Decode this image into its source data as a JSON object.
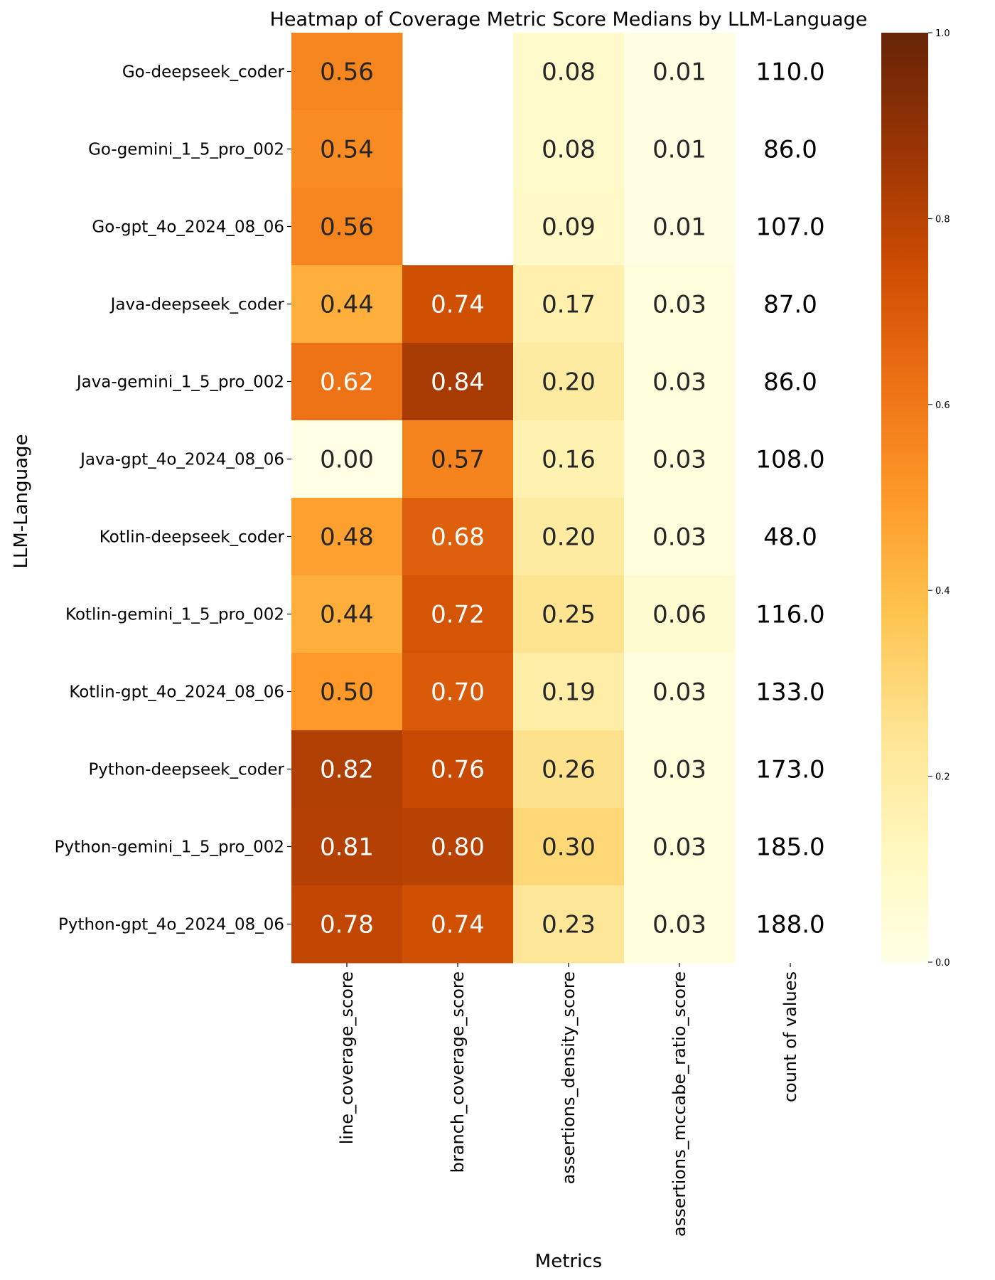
{
  "chart_data": {
    "type": "heatmap",
    "title": "Heatmap of Coverage Metric Score Medians by LLM-Language",
    "xlabel": "Metrics",
    "ylabel": "LLM-Language",
    "rows": [
      "Go-deepseek_coder",
      "Go-gemini_1_5_pro_002",
      "Go-gpt_4o_2024_08_06",
      "Java-deepseek_coder",
      "Java-gemini_1_5_pro_002",
      "Java-gpt_4o_2024_08_06",
      "Kotlin-deepseek_coder",
      "Kotlin-gemini_1_5_pro_002",
      "Kotlin-gpt_4o_2024_08_06",
      "Python-deepseek_coder",
      "Python-gemini_1_5_pro_002",
      "Python-gpt_4o_2024_08_06"
    ],
    "columns": [
      "line_coverage_score",
      "branch_coverage_score",
      "assertions_density_score",
      "assertions_mccabe_ratio_score",
      "count of values"
    ],
    "values": [
      [
        0.56,
        null,
        0.08,
        0.01,
        110.0
      ],
      [
        0.54,
        null,
        0.08,
        0.01,
        86.0
      ],
      [
        0.56,
        null,
        0.09,
        0.01,
        107.0
      ],
      [
        0.44,
        0.74,
        0.17,
        0.03,
        87.0
      ],
      [
        0.62,
        0.84,
        0.2,
        0.03,
        86.0
      ],
      [
        0.0,
        0.57,
        0.16,
        0.03,
        108.0
      ],
      [
        0.48,
        0.68,
        0.2,
        0.03,
        48.0
      ],
      [
        0.44,
        0.72,
        0.25,
        0.06,
        116.0
      ],
      [
        0.5,
        0.7,
        0.19,
        0.03,
        133.0
      ],
      [
        0.82,
        0.76,
        0.26,
        0.03,
        173.0
      ],
      [
        0.81,
        0.8,
        0.3,
        0.03,
        185.0
      ],
      [
        0.78,
        0.74,
        0.23,
        0.03,
        188.0
      ]
    ],
    "colorbar": {
      "colormap": "YlOrBr",
      "range": [
        0.0,
        1.0
      ],
      "ticks": [
        "0.0",
        "0.2",
        "0.4",
        "0.6",
        "0.8",
        "1.0"
      ]
    },
    "count_column_uncolored": true
  }
}
